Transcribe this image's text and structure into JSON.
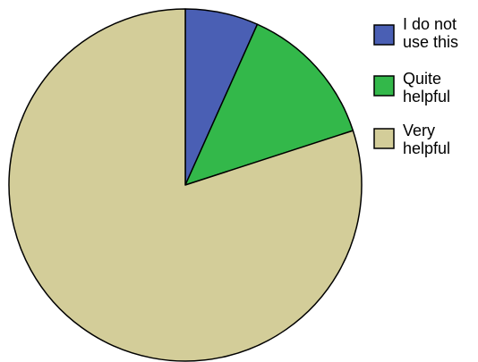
{
  "chart_data": {
    "type": "pie",
    "title": "",
    "categories": [
      "I do not use this",
      "Quite helpful",
      "Very helpful"
    ],
    "legend_lines": [
      [
        "I do not",
        "use this"
      ],
      [
        "Quite",
        "helpful"
      ],
      [
        "Very",
        "helpful"
      ]
    ],
    "values": [
      6.7,
      13.3,
      80.0
    ],
    "colors": [
      "#4a5fb4",
      "#33b84a",
      "#d3cd99"
    ],
    "start_angle_deg": 0,
    "direction": "clockwise",
    "legend_position": "top-right"
  }
}
